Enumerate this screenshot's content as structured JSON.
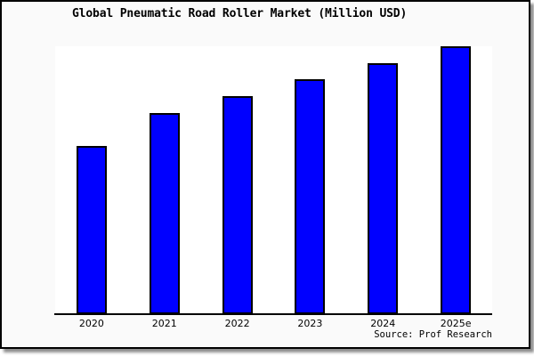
{
  "chart_data": {
    "type": "bar",
    "title": "Global Pneumatic Road Roller Market (Million USD)",
    "categories": [
      "2020",
      "2021",
      "2022",
      "2023",
      "2024",
      "2025e"
    ],
    "values": [
      62.8,
      75.1,
      81.4,
      87.7,
      93.7,
      100
    ],
    "values_note": "No y-axis scale, ticks or gridlines are shown in the chart; values are relative bar heights as % of the tallest (2025e) bar.",
    "xlabel": "",
    "ylabel": "",
    "ylim": [
      0,
      100
    ],
    "grid": false,
    "legend": false,
    "bar_color": "#0000ff",
    "bar_border_color": "#000000",
    "plot_bg": "#ffffff",
    "figure_bg": "#fafafa",
    "frame_color": "#000000"
  },
  "footer": {
    "source_label": "Source: Prof Research"
  }
}
